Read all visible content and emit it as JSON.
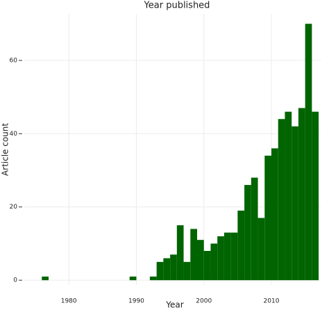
{
  "chart_data": {
    "type": "histogram",
    "title": "Year published",
    "x_label": "Year",
    "y_label": "Article count",
    "bins": [
      1976,
      1977,
      1978,
      1979,
      1980,
      1981,
      1982,
      1983,
      1984,
      1985,
      1986,
      1987,
      1988,
      1989,
      1990,
      1991,
      1992,
      1993,
      1994,
      1995,
      1996,
      1997,
      1998,
      1999,
      2000,
      2001,
      2002,
      2003,
      2004,
      2005,
      2006,
      2007,
      2008,
      2009,
      2010,
      2011,
      2012,
      2013,
      2014,
      2015,
      2016,
      2017
    ],
    "values": [
      1,
      0,
      0,
      0,
      0,
      0,
      0,
      0,
      0,
      0,
      0,
      0,
      0,
      1,
      0,
      0,
      1,
      5,
      6,
      7,
      15,
      5,
      14,
      11,
      8,
      10,
      12,
      13,
      13,
      19,
      26,
      28,
      17,
      34,
      36,
      44,
      46,
      42,
      47,
      70,
      46
    ],
    "color": "#006400",
    "xlim": [
      1973.4,
      2017.3
    ],
    "xticks": [
      1980,
      1990,
      2000,
      2010
    ],
    "ylim": [
      -1.3,
      72.7
    ],
    "yticks": [
      0,
      20,
      40,
      60
    ],
    "grid": true
  }
}
